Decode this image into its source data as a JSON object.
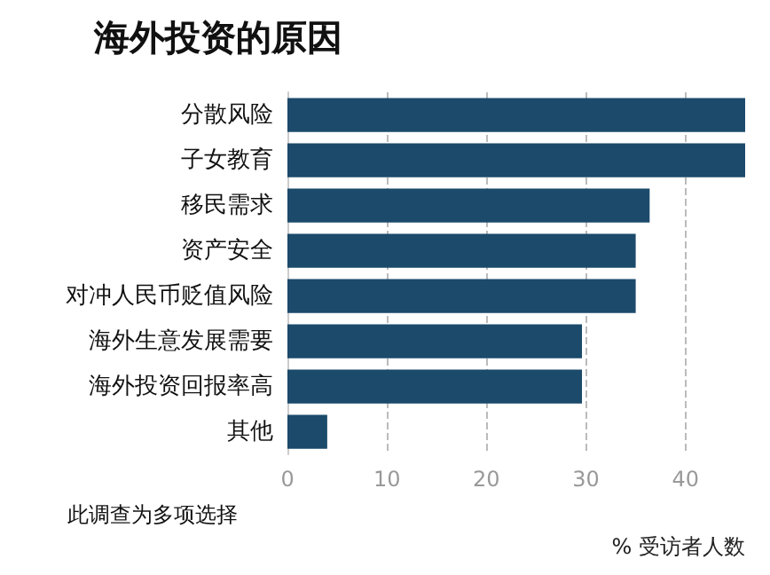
{
  "chart_data": {
    "type": "bar",
    "orientation": "horizontal",
    "title": "海外投资的原因",
    "categories": [
      "分散风险",
      "子女教育",
      "移民需求",
      "资产安全",
      "对冲人民币贬值风险",
      "海外生意发展需要",
      "海外投资回报率高",
      "其他"
    ],
    "values": [
      46,
      46,
      36.4,
      35,
      35,
      29.6,
      29.6,
      4
    ],
    "color": "#1b4a6b",
    "xlim": [
      0,
      46
    ],
    "xticks": [
      0,
      10,
      20,
      30,
      40
    ],
    "grid": "x",
    "xlabel": "% 受访者人数",
    "annotations": [
      "此调查为多项选择"
    ]
  }
}
